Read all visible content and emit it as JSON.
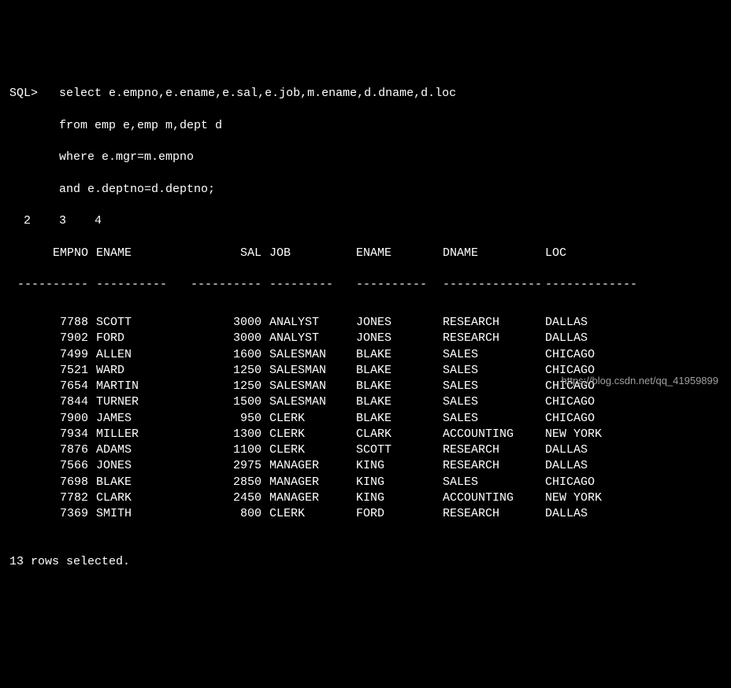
{
  "prompt": "SQL>",
  "query_lines": [
    "select e.empno,e.ename,e.sal,e.job,m.ename,d.dname,d.loc",
    "from emp e,emp m,dept d",
    "where e.mgr=m.empno",
    "and e.deptno=d.deptno;"
  ],
  "continuation_numbers": "  2    3    4",
  "columns": {
    "empno": "EMPNO",
    "ename": "ENAME",
    "sal": "SAL",
    "job": "JOB",
    "mname": "ENAME",
    "dname": "DNAME",
    "loc": "LOC"
  },
  "separator": {
    "empno": "----------",
    "ename": "----------",
    "sal": "----------",
    "job": "---------",
    "mname": "----------",
    "dname": "--------------",
    "loc": "-------------"
  },
  "rows": [
    {
      "empno": "7788",
      "ename": "SCOTT",
      "sal": "3000",
      "job": "ANALYST",
      "mname": "JONES",
      "dname": "RESEARCH",
      "loc": "DALLAS"
    },
    {
      "empno": "7902",
      "ename": "FORD",
      "sal": "3000",
      "job": "ANALYST",
      "mname": "JONES",
      "dname": "RESEARCH",
      "loc": "DALLAS"
    },
    {
      "empno": "7499",
      "ename": "ALLEN",
      "sal": "1600",
      "job": "SALESMAN",
      "mname": "BLAKE",
      "dname": "SALES",
      "loc": "CHICAGO"
    },
    {
      "empno": "7521",
      "ename": "WARD",
      "sal": "1250",
      "job": "SALESMAN",
      "mname": "BLAKE",
      "dname": "SALES",
      "loc": "CHICAGO"
    },
    {
      "empno": "7654",
      "ename": "MARTIN",
      "sal": "1250",
      "job": "SALESMAN",
      "mname": "BLAKE",
      "dname": "SALES",
      "loc": "CHICAGO"
    },
    {
      "empno": "7844",
      "ename": "TURNER",
      "sal": "1500",
      "job": "SALESMAN",
      "mname": "BLAKE",
      "dname": "SALES",
      "loc": "CHICAGO"
    },
    {
      "empno": "7900",
      "ename": "JAMES",
      "sal": "950",
      "job": "CLERK",
      "mname": "BLAKE",
      "dname": "SALES",
      "loc": "CHICAGO"
    },
    {
      "empno": "7934",
      "ename": "MILLER",
      "sal": "1300",
      "job": "CLERK",
      "mname": "CLARK",
      "dname": "ACCOUNTING",
      "loc": "NEW YORK"
    },
    {
      "empno": "7876",
      "ename": "ADAMS",
      "sal": "1100",
      "job": "CLERK",
      "mname": "SCOTT",
      "dname": "RESEARCH",
      "loc": "DALLAS"
    },
    {
      "empno": "7566",
      "ename": "JONES",
      "sal": "2975",
      "job": "MANAGER",
      "mname": "KING",
      "dname": "RESEARCH",
      "loc": "DALLAS"
    },
    {
      "empno": "7698",
      "ename": "BLAKE",
      "sal": "2850",
      "job": "MANAGER",
      "mname": "KING",
      "dname": "SALES",
      "loc": "CHICAGO"
    },
    {
      "empno": "7782",
      "ename": "CLARK",
      "sal": "2450",
      "job": "MANAGER",
      "mname": "KING",
      "dname": "ACCOUNTING",
      "loc": "NEW YORK"
    },
    {
      "empno": "7369",
      "ename": "SMITH",
      "sal": "800",
      "job": "CLERK",
      "mname": "FORD",
      "dname": "RESEARCH",
      "loc": "DALLAS"
    }
  ],
  "footer": "13 rows selected.",
  "watermark": "https://blog.csdn.net/qq_41959899",
  "colors": {
    "background": "#000000",
    "text": "#ffffff",
    "watermark": "#9e9e9e"
  }
}
